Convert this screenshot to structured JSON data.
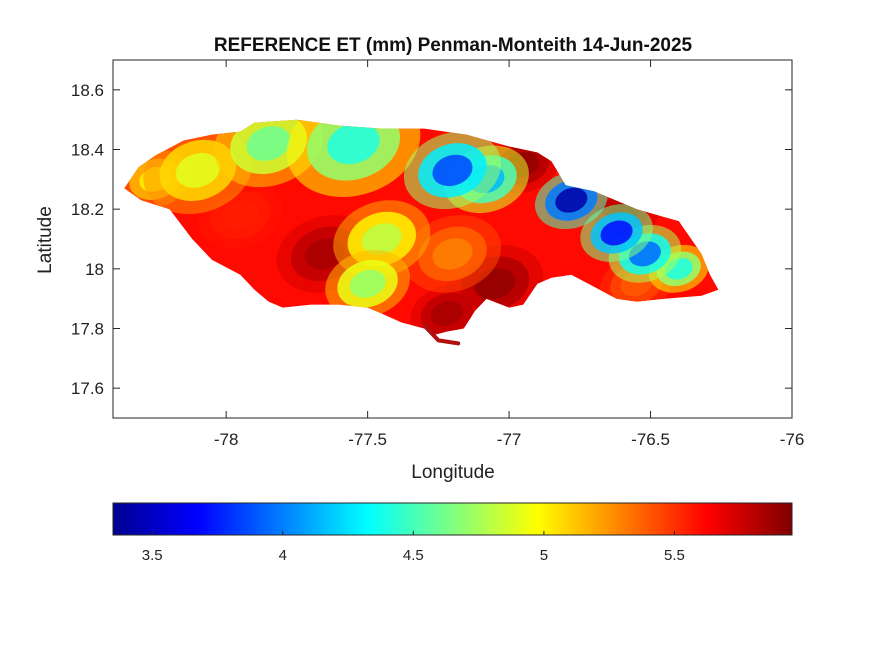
{
  "chart_data": {
    "type": "heatmap",
    "title": "REFERENCE ET (mm) Penman-Monteith 14-Jun-2025",
    "xlabel": "Longitude",
    "ylabel": "Latitude",
    "xlim": [
      -78.4,
      -76
    ],
    "ylim": [
      17.5,
      18.7
    ],
    "xticks": [
      -78,
      -77.5,
      -77,
      -76.5,
      -76
    ],
    "yticks": [
      17.6,
      17.8,
      18,
      18.2,
      18.4,
      18.6
    ],
    "xtick_labels": [
      "-78",
      "-77.5",
      "-77",
      "-76.5",
      "-76"
    ],
    "ytick_labels": [
      "17.6",
      "17.8",
      "18",
      "18.2",
      "18.4",
      "18.6"
    ],
    "colormap": "jet",
    "clim": [
      3.35,
      5.95
    ],
    "colorbar_ticks": [
      3.5,
      4,
      4.5,
      5,
      5.5
    ],
    "colorbar_tick_labels": [
      "3.5",
      "4",
      "4.5",
      "5",
      "5.5"
    ],
    "colorbar_location": "southoutside",
    "grid": false,
    "background_value": 5.6,
    "outline": [
      [
        -78.36,
        18.27
      ],
      [
        -78.31,
        18.34
      ],
      [
        -78.25,
        18.38
      ],
      [
        -78.15,
        18.43
      ],
      [
        -78.05,
        18.45
      ],
      [
        -77.95,
        18.46
      ],
      [
        -77.9,
        18.49
      ],
      [
        -77.75,
        18.5
      ],
      [
        -77.6,
        18.48
      ],
      [
        -77.45,
        18.47
      ],
      [
        -77.3,
        18.47
      ],
      [
        -77.15,
        18.45
      ],
      [
        -77.0,
        18.41
      ],
      [
        -76.9,
        18.39
      ],
      [
        -76.85,
        18.36
      ],
      [
        -76.8,
        18.28
      ],
      [
        -76.7,
        18.26
      ],
      [
        -76.55,
        18.2
      ],
      [
        -76.4,
        18.16
      ],
      [
        -76.32,
        18.05
      ],
      [
        -76.29,
        17.98
      ],
      [
        -76.26,
        17.93
      ],
      [
        -76.32,
        17.91
      ],
      [
        -76.45,
        17.9
      ],
      [
        -76.55,
        17.89
      ],
      [
        -76.62,
        17.9
      ],
      [
        -76.7,
        17.94
      ],
      [
        -76.78,
        17.98
      ],
      [
        -76.85,
        17.97
      ],
      [
        -76.9,
        17.95
      ],
      [
        -76.95,
        17.88
      ],
      [
        -77.0,
        17.87
      ],
      [
        -77.08,
        17.9
      ],
      [
        -77.12,
        17.86
      ],
      [
        -77.16,
        17.8
      ],
      [
        -77.22,
        17.79
      ],
      [
        -77.26,
        17.78
      ],
      [
        -77.3,
        17.8
      ],
      [
        -77.38,
        17.82
      ],
      [
        -77.45,
        17.85
      ],
      [
        -77.5,
        17.87
      ],
      [
        -77.6,
        17.88
      ],
      [
        -77.7,
        17.88
      ],
      [
        -77.8,
        17.87
      ],
      [
        -77.85,
        17.89
      ],
      [
        -77.9,
        17.93
      ],
      [
        -77.95,
        17.98
      ],
      [
        -78.05,
        18.03
      ],
      [
        -78.12,
        18.1
      ],
      [
        -78.2,
        18.2
      ],
      [
        -78.3,
        18.23
      ],
      [
        -78.36,
        18.27
      ]
    ],
    "spit": [
      [
        -77.3,
        17.81
      ],
      [
        -77.25,
        17.76
      ],
      [
        -77.18,
        17.75
      ]
    ],
    "value_fields": [
      {
        "lon": -76.78,
        "lat": 18.23,
        "value": 3.45,
        "spread": 0.05
      },
      {
        "lon": -76.62,
        "lat": 18.12,
        "value": 3.7,
        "spread": 0.05
      },
      {
        "lon": -76.52,
        "lat": 18.05,
        "value": 3.95,
        "spread": 0.05
      },
      {
        "lon": -77.2,
        "lat": 18.33,
        "value": 3.85,
        "spread": 0.07
      },
      {
        "lon": -77.08,
        "lat": 18.3,
        "value": 4.15,
        "spread": 0.06
      },
      {
        "lon": -77.55,
        "lat": 18.42,
        "value": 4.4,
        "spread": 0.1
      },
      {
        "lon": -77.85,
        "lat": 18.42,
        "value": 4.6,
        "spread": 0.08
      },
      {
        "lon": -78.1,
        "lat": 18.33,
        "value": 4.9,
        "spread": 0.08
      },
      {
        "lon": -77.95,
        "lat": 18.18,
        "value": 5.55,
        "spread": 0.06
      },
      {
        "lon": -77.65,
        "lat": 18.05,
        "value": 5.85,
        "spread": 0.07
      },
      {
        "lon": -77.5,
        "lat": 17.95,
        "value": 4.7,
        "spread": 0.06
      },
      {
        "lon": -77.45,
        "lat": 18.1,
        "value": 4.8,
        "spread": 0.07
      },
      {
        "lon": -77.2,
        "lat": 18.05,
        "value": 5.3,
        "spread": 0.07
      },
      {
        "lon": -77.05,
        "lat": 17.95,
        "value": 5.9,
        "spread": 0.07
      },
      {
        "lon": -77.22,
        "lat": 17.85,
        "value": 5.85,
        "spread": 0.05
      },
      {
        "lon": -76.95,
        "lat": 18.35,
        "value": 5.9,
        "spread": 0.05
      },
      {
        "lon": -76.6,
        "lat": 18.18,
        "value": 5.85,
        "spread": 0.05
      },
      {
        "lon": -76.55,
        "lat": 17.95,
        "value": 5.4,
        "spread": 0.05
      },
      {
        "lon": -76.75,
        "lat": 18.08,
        "value": 5.6,
        "spread": 0.06
      },
      {
        "lon": -76.4,
        "lat": 18.0,
        "value": 4.4,
        "spread": 0.04
      },
      {
        "lon": -78.25,
        "lat": 18.3,
        "value": 5.0,
        "spread": 0.05
      }
    ]
  }
}
